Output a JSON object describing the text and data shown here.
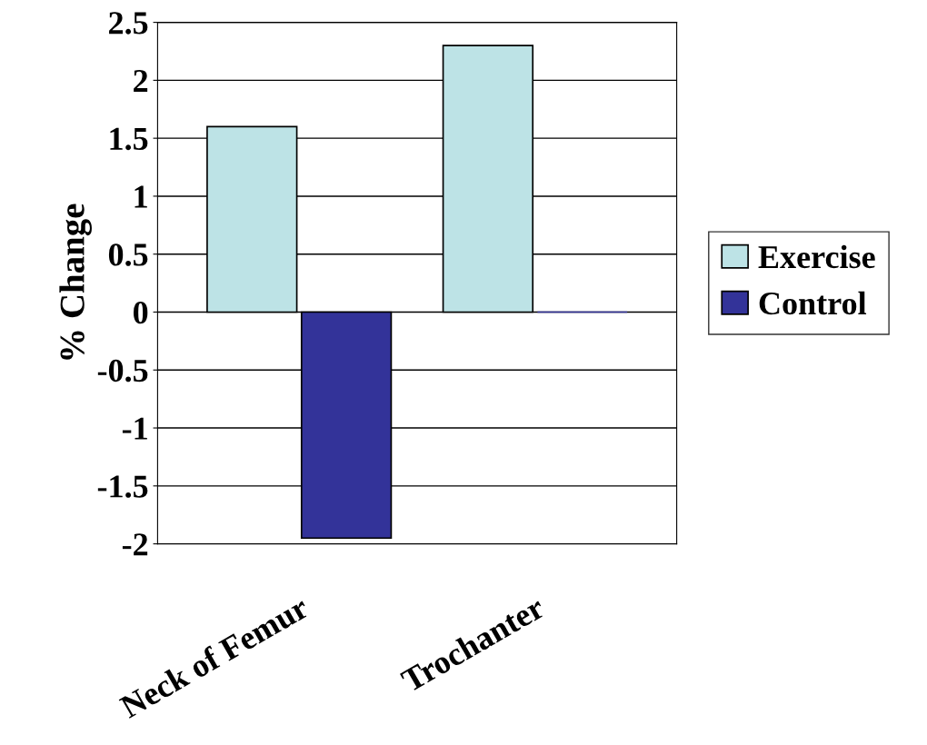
{
  "chart_data": {
    "type": "bar",
    "ylabel": "% Change",
    "categories": [
      "Neck of Femur",
      "Trochanter"
    ],
    "series": [
      {
        "name": "Exercise",
        "color": "#bde3e6",
        "values": [
          1.6,
          2.3
        ]
      },
      {
        "name": "Control",
        "color": "#333399",
        "values": [
          -1.95,
          0
        ]
      }
    ],
    "ylim": [
      -2,
      2.5
    ],
    "yticks": [
      -2,
      -1.5,
      -1,
      -0.5,
      0,
      0.5,
      1,
      1.5,
      2,
      2.5
    ],
    "grid": "y",
    "legend": "right"
  }
}
